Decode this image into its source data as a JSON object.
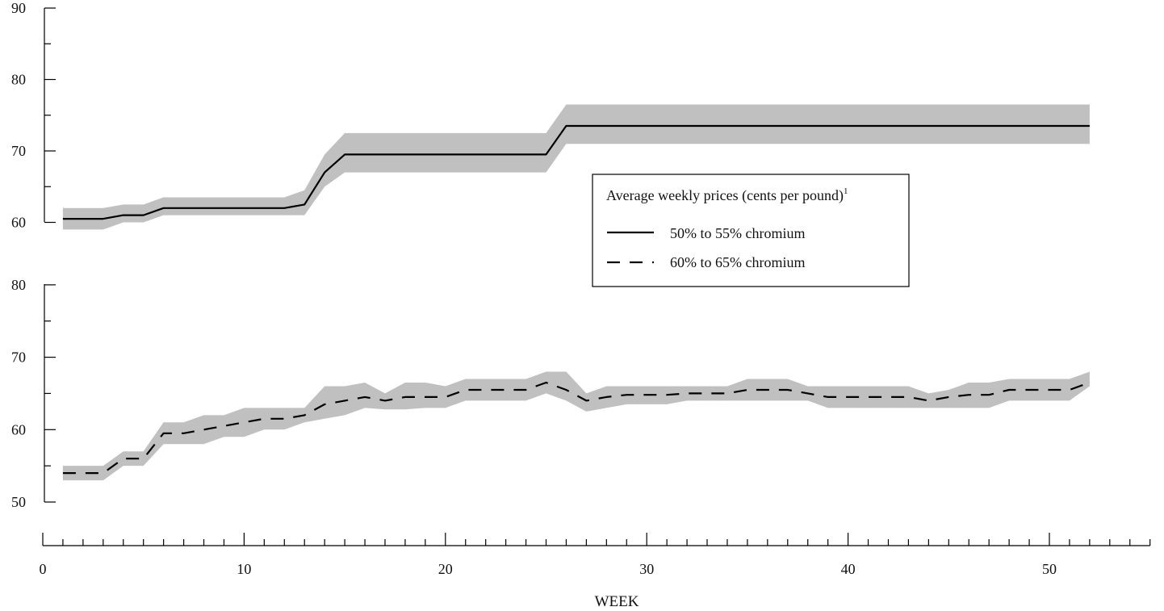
{
  "chart_data": {
    "type": "line",
    "xlabel": "WEEK",
    "xlim": [
      0,
      55
    ],
    "x_ticks": [
      0,
      10,
      20,
      30,
      40,
      50
    ],
    "legend": {
      "title": "Average weekly prices (cents per pound)",
      "title_footnote": "1",
      "placement": "center-right"
    },
    "band_color": "#c0c0c0",
    "line_color": "#000000",
    "panels": [
      {
        "position": "top",
        "ylim": [
          58,
          90
        ],
        "y_ticks": [
          60,
          70,
          80,
          90
        ],
        "series": {
          "name": "50% to 55% chromium",
          "style": "solid",
          "x": [
            1,
            2,
            3,
            4,
            5,
            6,
            7,
            8,
            9,
            10,
            11,
            12,
            13,
            14,
            15,
            16,
            17,
            18,
            19,
            20,
            21,
            22,
            23,
            24,
            25,
            26,
            27,
            28,
            29,
            30,
            31,
            32,
            33,
            34,
            35,
            36,
            37,
            38,
            39,
            40,
            41,
            42,
            43,
            44,
            45,
            46,
            47,
            48,
            49,
            50,
            51,
            52
          ],
          "values": [
            60.5,
            60.5,
            60.5,
            61,
            61,
            62,
            62,
            62,
            62,
            62,
            62,
            62,
            62.5,
            67,
            69.5,
            69.5,
            69.5,
            69.5,
            69.5,
            69.5,
            69.5,
            69.5,
            69.5,
            69.5,
            69.5,
            73.5,
            73.5,
            73.5,
            73.5,
            73.5,
            73.5,
            73.5,
            73.5,
            73.5,
            73.5,
            73.5,
            73.5,
            73.5,
            73.5,
            73.5,
            73.5,
            73.5,
            73.5,
            73.5,
            73.5,
            73.5,
            73.5,
            73.5,
            73.5,
            73.5,
            73.5,
            73.5
          ],
          "low": [
            59,
            59,
            59,
            60,
            60,
            61,
            61,
            61,
            61,
            61,
            61,
            61,
            61,
            65,
            67,
            67,
            67,
            67,
            67,
            67,
            67,
            67,
            67,
            67,
            67,
            71,
            71,
            71,
            71,
            71,
            71,
            71,
            71,
            71,
            71,
            71,
            71,
            71,
            71,
            71,
            71,
            71,
            71,
            71,
            71,
            71,
            71,
            71,
            71,
            71,
            71,
            71
          ],
          "high": [
            62,
            62,
            62,
            62.5,
            62.5,
            63.5,
            63.5,
            63.5,
            63.5,
            63.5,
            63.5,
            63.5,
            64.5,
            69.5,
            72.5,
            72.5,
            72.5,
            72.5,
            72.5,
            72.5,
            72.5,
            72.5,
            72.5,
            72.5,
            72.5,
            76.5,
            76.5,
            76.5,
            76.5,
            76.5,
            76.5,
            76.5,
            76.5,
            76.5,
            76.5,
            76.5,
            76.5,
            76.5,
            76.5,
            76.5,
            76.5,
            76.5,
            76.5,
            76.5,
            76.5,
            76.5,
            76.5,
            76.5,
            76.5,
            76.5,
            76.5,
            76.5
          ]
        }
      },
      {
        "position": "bottom",
        "ylim": [
          50,
          80
        ],
        "y_ticks": [
          50,
          60,
          70,
          80
        ],
        "series": {
          "name": "60% to 65% chromium",
          "style": "dashed",
          "x": [
            1,
            2,
            3,
            4,
            5,
            6,
            7,
            8,
            9,
            10,
            11,
            12,
            13,
            14,
            15,
            16,
            17,
            18,
            19,
            20,
            21,
            22,
            23,
            24,
            25,
            26,
            27,
            28,
            29,
            30,
            31,
            32,
            33,
            34,
            35,
            36,
            37,
            38,
            39,
            40,
            41,
            42,
            43,
            44,
            45,
            46,
            47,
            48,
            49,
            50,
            51,
            52
          ],
          "values": [
            54,
            54,
            54,
            56,
            56,
            59.5,
            59.5,
            60,
            60.5,
            61,
            61.5,
            61.5,
            62,
            63.5,
            64,
            64.5,
            64,
            64.5,
            64.5,
            64.5,
            65.5,
            65.5,
            65.5,
            65.5,
            66.5,
            65.5,
            64,
            64.5,
            64.8,
            64.8,
            64.8,
            65,
            65,
            65,
            65.5,
            65.5,
            65.5,
            65,
            64.5,
            64.5,
            64.5,
            64.5,
            64.5,
            64,
            64.5,
            64.8,
            64.8,
            65.5,
            65.5,
            65.5,
            65.5,
            66.5
          ],
          "low": [
            53,
            53,
            53,
            55,
            55,
            58,
            58,
            58,
            59,
            59,
            60,
            60,
            61,
            61.5,
            62,
            63,
            62.8,
            62.8,
            63,
            63,
            64,
            64,
            64,
            64,
            65,
            64,
            62.5,
            63,
            63.5,
            63.5,
            63.5,
            64,
            64,
            64,
            64,
            64,
            64,
            64,
            63,
            63,
            63,
            63,
            63,
            63,
            63,
            63,
            63,
            64,
            64,
            64,
            64,
            66
          ],
          "high": [
            55,
            55,
            55,
            57,
            57,
            61,
            61,
            62,
            62,
            63,
            63,
            63,
            63,
            66,
            66,
            66.5,
            65,
            66.5,
            66.5,
            66,
            67,
            67,
            67,
            67,
            68,
            68,
            65,
            66,
            66,
            66,
            66,
            66,
            66,
            66,
            67,
            67,
            67,
            66,
            66,
            66,
            66,
            66,
            66,
            65,
            65.5,
            66.5,
            66.5,
            67,
            67,
            67,
            67,
            68
          ]
        }
      }
    ]
  }
}
